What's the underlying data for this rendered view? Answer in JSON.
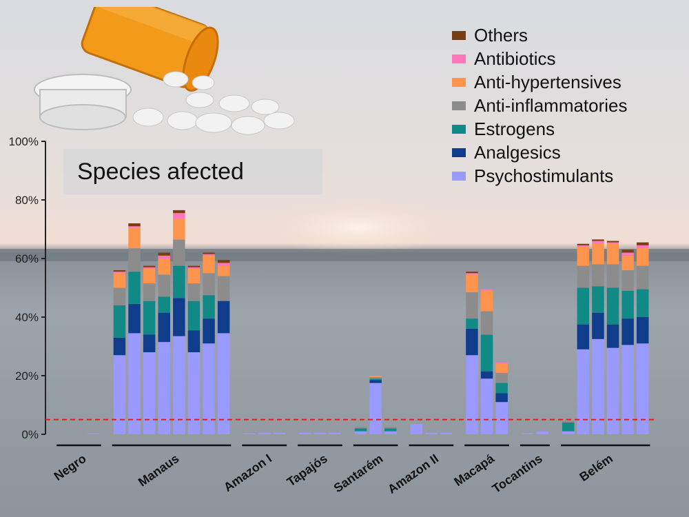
{
  "chart_data": {
    "type": "bar",
    "stacked": true,
    "title": "Species afected",
    "ylabel": "",
    "xlabel": "",
    "ylim": [
      0,
      100
    ],
    "yticks": [
      "0%",
      "20%",
      "40%",
      "60%",
      "80%",
      "100%"
    ],
    "threshold": 5,
    "series_order": [
      "Psychostimulants",
      "Analgesics",
      "Estrogens",
      "Anti-inflammatories",
      "Anti-hypertensives",
      "Antibiotics",
      "Others"
    ],
    "colors": {
      "Psychostimulants": "#9999ff",
      "Analgesics": "#0f3d8c",
      "Estrogens": "#118a87",
      "Anti-inflammatories": "#8c8c8c",
      "Anti-hypertensives": "#ff944d",
      "Antibiotics": "#ff77bb",
      "Others": "#7a3e10"
    },
    "legend": [
      "Others",
      "Antibiotics",
      "Anti-hypertensives",
      "Anti-inflammatories",
      "Estrogens",
      "Analgesics",
      "Psychostimulants"
    ],
    "groups": [
      {
        "name": "Negro",
        "bars": [
          [
            0,
            0,
            0,
            0,
            0,
            0,
            0
          ],
          [
            0,
            0,
            0,
            0,
            0,
            0,
            0
          ],
          [
            0.3,
            0,
            0,
            0,
            0,
            0,
            0
          ]
        ]
      },
      {
        "name": "Manaus",
        "bars": [
          [
            27,
            6,
            11,
            6,
            5,
            0.5,
            0.5
          ],
          [
            34.5,
            10,
            11,
            8,
            7,
            0.5,
            1
          ],
          [
            28,
            6,
            11.5,
            6,
            5,
            0.5,
            0.5
          ],
          [
            31.5,
            10,
            5.5,
            7.5,
            5.5,
            1,
            1
          ],
          [
            33.5,
            13,
            11,
            9,
            7,
            2,
            1
          ],
          [
            28,
            7.5,
            10,
            6,
            5,
            0.5,
            0.5
          ],
          [
            31,
            8.5,
            8,
            7.5,
            6,
            0.5,
            0.5
          ],
          [
            34.5,
            11,
            0,
            8.5,
            3.5,
            1,
            1
          ]
        ]
      },
      {
        "name": "Amazon I",
        "bars": [
          [
            0.3,
            0,
            0,
            0,
            0,
            0,
            0
          ],
          [
            0.5,
            0,
            0,
            0,
            0,
            0,
            0
          ],
          [
            0.5,
            0,
            0,
            0,
            0,
            0,
            0
          ]
        ]
      },
      {
        "name": "Tapajós",
        "bars": [
          [
            0.5,
            0,
            0,
            0,
            0,
            0,
            0
          ],
          [
            0.5,
            0,
            0,
            0,
            0,
            0,
            0
          ],
          [
            0.5,
            0,
            0,
            0,
            0,
            0,
            0
          ]
        ]
      },
      {
        "name": "Santarém",
        "bars": [
          [
            1,
            0,
            1,
            0.5,
            0,
            0,
            0
          ],
          [
            17.5,
            1,
            0.5,
            0.5,
            0.5,
            0,
            0
          ],
          [
            1,
            0,
            1,
            0.5,
            0,
            0,
            0
          ]
        ]
      },
      {
        "name": "Amazon II",
        "bars": [
          [
            3.5,
            0,
            0,
            0,
            0,
            0,
            0
          ],
          [
            0.5,
            0,
            0,
            0,
            0,
            0,
            0
          ],
          [
            0.5,
            0,
            0,
            0,
            0,
            0,
            0
          ]
        ]
      },
      {
        "name": "Macapá",
        "bars": [
          [
            27,
            9,
            3.5,
            9,
            6,
            0.5,
            0.5
          ],
          [
            19,
            2.5,
            12.5,
            8,
            7,
            0.5,
            0
          ],
          [
            11,
            3,
            3.5,
            3.5,
            3,
            0.5,
            0
          ]
        ]
      },
      {
        "name": "Tocantins",
        "bars": [
          [
            0.3,
            0,
            0,
            0,
            0,
            0,
            0
          ],
          [
            1,
            0,
            0,
            0,
            0,
            0,
            0
          ]
        ]
      },
      {
        "name": "Belém",
        "bars": [
          [
            1,
            0,
            3,
            0.5,
            0,
            0,
            0
          ],
          [
            29,
            8.5,
            12.5,
            7.5,
            6.5,
            0.5,
            0.5
          ],
          [
            32.5,
            9,
            9,
            7.5,
            7,
            1,
            0.5
          ],
          [
            29.5,
            8,
            12.5,
            8,
            7,
            0.5,
            0.5
          ],
          [
            30.5,
            9,
            9.5,
            7,
            5,
            1,
            1
          ],
          [
            31,
            9,
            9.5,
            8,
            6,
            1,
            1
          ]
        ]
      }
    ]
  }
}
